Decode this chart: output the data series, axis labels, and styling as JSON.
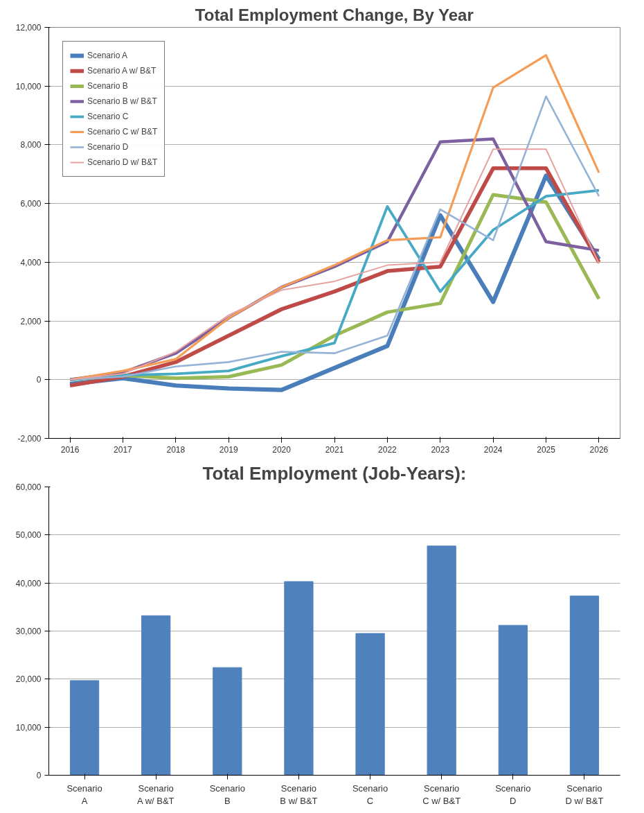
{
  "chart_data": [
    {
      "type": "line",
      "title": "Total Employment Change, By Year",
      "x": [
        2016,
        2017,
        2018,
        2019,
        2020,
        2021,
        2022,
        2023,
        2024,
        2025,
        2026
      ],
      "xticks": [
        2016,
        2017,
        2018,
        2019,
        2020,
        2021,
        2022,
        2023,
        2024,
        2025,
        2026
      ],
      "xlim": [
        2015.6,
        2026.4
      ],
      "ylim": [
        -2000,
        12000
      ],
      "yticks": [
        {
          "value": -2000,
          "label": "-2,000"
        },
        0,
        {
          "value": 2000,
          "label": "2,000"
        },
        {
          "value": 4000,
          "label": "4,000"
        },
        {
          "value": 6000,
          "label": "6,000"
        },
        {
          "value": 8000,
          "label": "8,000"
        },
        {
          "value": 10000,
          "label": "10,000"
        },
        {
          "value": 12000,
          "label": "12,000"
        }
      ],
      "grid": "y",
      "legend": "top left",
      "marker": "none",
      "line_style": "solid",
      "series": [
        {
          "name": "Scenario A",
          "color": "#4a7ebb",
          "values": [
            -150,
            50,
            -200,
            -300,
            -350,
            400,
            1150,
            5600,
            2650,
            6950,
            4100
          ]
        },
        {
          "name": "Scenario A w/ B&T",
          "color": "#be4b48",
          "values": [
            -200,
            100,
            600,
            1500,
            2400,
            3000,
            3700,
            3850,
            7200,
            7200,
            4000
          ]
        },
        {
          "name": "Scenario B",
          "color": "#98b954",
          "values": [
            0,
            150,
            50,
            100,
            500,
            1500,
            2300,
            2600,
            6300,
            6050,
            2750
          ]
        },
        {
          "name": "Scenario B w/ B&T",
          "color": "#7d60a0",
          "values": [
            0,
            250,
            900,
            2100,
            3150,
            3850,
            4700,
            8100,
            8200,
            4700,
            4400
          ]
        },
        {
          "name": "Scenario C",
          "color": "#46aac5",
          "values": [
            0,
            150,
            200,
            300,
            800,
            1250,
            5900,
            3000,
            5100,
            6250,
            6450
          ]
        },
        {
          "name": "Scenario C w/ B&T",
          "color": "#f59d56",
          "values": [
            0,
            300,
            700,
            2100,
            3150,
            3900,
            4750,
            4850,
            9950,
            11050,
            7050
          ]
        },
        {
          "name": "Scenario D",
          "color": "#95b3d7",
          "values": [
            0,
            100,
            450,
            600,
            950,
            900,
            1500,
            5800,
            4750,
            9650,
            6250
          ]
        },
        {
          "name": "Scenario D w/ B&T",
          "color": "#e6a2a0",
          "values": [
            0,
            200,
            950,
            2200,
            3050,
            3350,
            3900,
            4000,
            7850,
            7850,
            3950
          ]
        }
      ]
    },
    {
      "type": "bar",
      "title": "Total Employment (Job-Years):",
      "categories": [
        "Scenario A",
        "Scenario A w/ B&T",
        "Scenario B",
        "Scenario B w/ B&T",
        "Scenario C",
        "Scenario C w/ B&T",
        "Scenario D",
        "Scenario D w/ B&T"
      ],
      "values": [
        19700,
        33200,
        22400,
        40300,
        29500,
        47700,
        31200,
        37300
      ],
      "color": "#4f81bd",
      "ylim": [
        0,
        60000
      ],
      "yticks": [
        0,
        {
          "value": 10000,
          "label": "10,000"
        },
        {
          "value": 20000,
          "label": "20,000"
        },
        {
          "value": 30000,
          "label": "30,000"
        },
        {
          "value": 40000,
          "label": "40,000"
        },
        {
          "value": 50000,
          "label": "50,000"
        },
        {
          "value": 60000,
          "label": "60,000"
        }
      ],
      "grid": "y"
    }
  ]
}
